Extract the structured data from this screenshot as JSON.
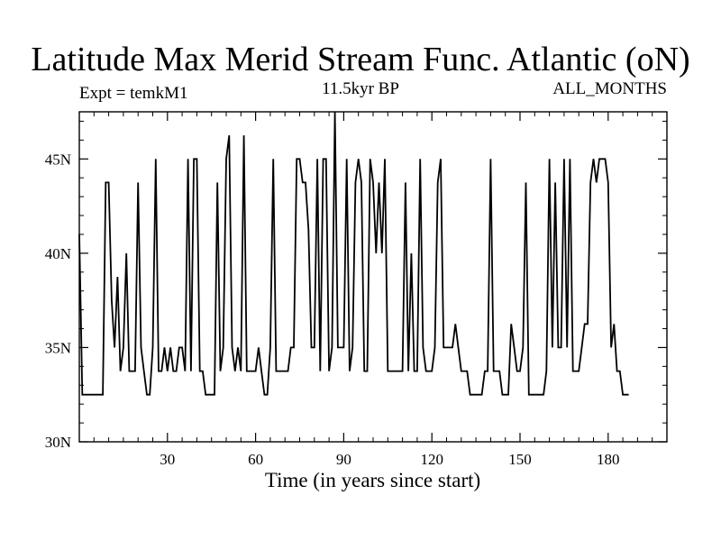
{
  "chart_data": {
    "type": "line",
    "title": "Latitude Max Merid Stream Func. Atlantic (oN)",
    "subtitle": "11.5kyr BP",
    "left_label": "Expt = temkM1",
    "right_label": "ALL_MONTHS",
    "xlabel": "Time (in years since start)",
    "ylabel": "",
    "xlim": [
      0,
      200
    ],
    "ylim": [
      30,
      47.5
    ],
    "x_ticks": [
      30,
      60,
      90,
      120,
      150,
      180
    ],
    "x_tick_labels": [
      "30",
      "60",
      "90",
      "120",
      "150",
      "180"
    ],
    "y_ticks": [
      30,
      35,
      40,
      45
    ],
    "y_tick_labels": [
      "30N",
      "35N",
      "40N",
      "45N"
    ],
    "grid": false,
    "series": [
      {
        "values": [
          [
            0,
            41
          ],
          [
            0.5,
            37
          ],
          [
            1,
            32.5
          ],
          [
            8,
            32.5
          ],
          [
            9,
            43.75
          ],
          [
            10,
            43.75
          ],
          [
            11,
            37.5
          ],
          [
            12,
            35
          ],
          [
            13,
            38.75
          ],
          [
            14,
            33.75
          ],
          [
            15,
            35
          ],
          [
            16,
            40
          ],
          [
            17,
            33.75
          ],
          [
            18,
            33.75
          ],
          [
            19,
            33.75
          ],
          [
            20,
            43.75
          ],
          [
            21,
            35
          ],
          [
            22,
            33.75
          ],
          [
            23,
            32.5
          ],
          [
            24,
            32.5
          ],
          [
            25,
            35
          ],
          [
            26,
            45
          ],
          [
            27,
            33.75
          ],
          [
            28,
            33.75
          ],
          [
            29,
            35
          ],
          [
            30,
            33.75
          ],
          [
            31,
            35
          ],
          [
            32,
            33.75
          ],
          [
            33,
            33.75
          ],
          [
            34,
            35
          ],
          [
            35,
            35
          ],
          [
            36,
            33.75
          ],
          [
            37,
            45
          ],
          [
            38,
            33.75
          ],
          [
            39,
            45
          ],
          [
            40,
            45
          ],
          [
            41,
            33.75
          ],
          [
            42,
            33.75
          ],
          [
            43,
            32.5
          ],
          [
            44,
            32.5
          ],
          [
            45,
            32.5
          ],
          [
            46,
            32.5
          ],
          [
            47,
            43.75
          ],
          [
            48,
            33.75
          ],
          [
            49,
            35
          ],
          [
            50,
            45
          ],
          [
            51,
            46.25
          ],
          [
            52,
            35
          ],
          [
            53,
            33.75
          ],
          [
            54,
            35
          ],
          [
            55,
            33.75
          ],
          [
            56,
            46.25
          ],
          [
            57,
            33.75
          ],
          [
            58,
            33.75
          ],
          [
            59,
            33.75
          ],
          [
            60,
            33.75
          ],
          [
            61,
            35
          ],
          [
            62,
            33.75
          ],
          [
            63,
            32.5
          ],
          [
            64,
            32.5
          ],
          [
            65,
            35
          ],
          [
            66,
            45
          ],
          [
            67,
            33.75
          ],
          [
            68,
            33.75
          ],
          [
            69,
            33.75
          ],
          [
            70,
            33.75
          ],
          [
            71,
            33.75
          ],
          [
            72,
            35
          ],
          [
            73,
            35
          ],
          [
            74,
            45
          ],
          [
            75,
            45
          ],
          [
            76,
            43.75
          ],
          [
            77,
            43.75
          ],
          [
            78,
            41.25
          ],
          [
            79,
            35
          ],
          [
            80,
            35
          ],
          [
            81,
            45
          ],
          [
            82,
            33.75
          ],
          [
            83,
            45
          ],
          [
            84,
            45
          ],
          [
            85,
            33.75
          ],
          [
            86,
            35
          ],
          [
            87,
            47.5
          ],
          [
            88,
            35
          ],
          [
            89,
            35
          ],
          [
            90,
            35
          ],
          [
            91,
            45
          ],
          [
            92,
            33.75
          ],
          [
            93,
            35
          ],
          [
            94,
            43.75
          ],
          [
            95,
            45
          ],
          [
            96,
            43.75
          ],
          [
            97,
            33.75
          ],
          [
            98,
            33.75
          ],
          [
            99,
            45
          ],
          [
            100,
            43.75
          ],
          [
            101,
            40
          ],
          [
            102,
            43.75
          ],
          [
            103,
            40
          ],
          [
            104,
            45
          ],
          [
            105,
            33.75
          ],
          [
            106,
            33.75
          ],
          [
            107,
            33.75
          ],
          [
            108,
            33.75
          ],
          [
            109,
            33.75
          ],
          [
            110,
            33.75
          ],
          [
            111,
            43.75
          ],
          [
            112,
            33.75
          ],
          [
            113,
            40
          ],
          [
            114,
            33.75
          ],
          [
            115,
            33.75
          ],
          [
            116,
            45
          ],
          [
            117,
            35
          ],
          [
            118,
            33.75
          ],
          [
            119,
            33.75
          ],
          [
            120,
            33.75
          ],
          [
            121,
            35
          ],
          [
            122,
            43.75
          ],
          [
            123,
            45
          ],
          [
            124,
            35
          ],
          [
            125,
            35
          ],
          [
            126,
            35
          ],
          [
            127,
            35
          ],
          [
            128,
            36.25
          ],
          [
            129,
            35
          ],
          [
            130,
            33.75
          ],
          [
            131,
            33.75
          ],
          [
            132,
            33.75
          ],
          [
            133,
            32.5
          ],
          [
            134,
            32.5
          ],
          [
            135,
            32.5
          ],
          [
            136,
            32.5
          ],
          [
            137,
            32.5
          ],
          [
            138,
            33.75
          ],
          [
            139,
            33.75
          ],
          [
            140,
            45
          ],
          [
            141,
            33.75
          ],
          [
            142,
            33.75
          ],
          [
            143,
            33.75
          ],
          [
            144,
            32.5
          ],
          [
            145,
            32.5
          ],
          [
            146,
            32.5
          ],
          [
            147,
            36.25
          ],
          [
            148,
            35
          ],
          [
            149,
            33.75
          ],
          [
            150,
            33.75
          ],
          [
            151,
            35
          ],
          [
            152,
            43.75
          ],
          [
            153,
            32.5
          ],
          [
            154,
            32.5
          ],
          [
            155,
            32.5
          ],
          [
            156,
            32.5
          ],
          [
            157,
            32.5
          ],
          [
            158,
            32.5
          ],
          [
            159,
            33.75
          ],
          [
            160,
            45
          ],
          [
            161,
            35
          ],
          [
            162,
            43.75
          ],
          [
            163,
            35
          ],
          [
            164,
            35
          ],
          [
            165,
            45
          ],
          [
            166,
            35
          ],
          [
            167,
            45
          ],
          [
            168,
            33.75
          ],
          [
            169,
            33.75
          ],
          [
            170,
            33.75
          ],
          [
            171,
            35
          ],
          [
            172,
            36.25
          ],
          [
            173,
            36.25
          ],
          [
            174,
            43.75
          ],
          [
            175,
            45
          ],
          [
            176,
            43.75
          ],
          [
            177,
            45
          ],
          [
            178,
            45
          ],
          [
            179,
            45
          ],
          [
            180,
            43.75
          ],
          [
            181,
            35
          ],
          [
            182,
            36.25
          ],
          [
            183,
            33.75
          ],
          [
            184,
            33.75
          ],
          [
            185,
            32.5
          ],
          [
            186,
            32.5
          ],
          [
            187,
            32.5
          ]
        ]
      }
    ]
  }
}
